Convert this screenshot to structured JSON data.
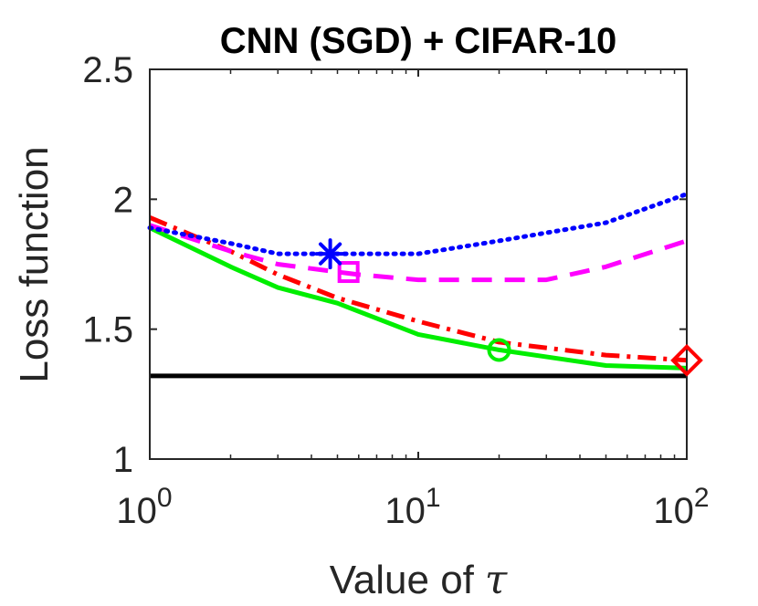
{
  "chart_data": {
    "type": "line",
    "title": "CNN (SGD) + CIFAR-10",
    "xlabel": "Value of",
    "xlabel_symbol": "τ",
    "ylabel": "Loss function",
    "xscale": "log",
    "xlim": [
      1,
      100
    ],
    "ylim": [
      1,
      2.5
    ],
    "xticks": [
      {
        "value": 1,
        "base": "10",
        "exp": "0"
      },
      {
        "value": 10,
        "base": "10",
        "exp": "1"
      },
      {
        "value": 100,
        "base": "10",
        "exp": "2"
      }
    ],
    "yticks": [
      {
        "value": 1,
        "label": "1"
      },
      {
        "value": 1.5,
        "label": "1.5"
      },
      {
        "value": 2,
        "label": "2"
      },
      {
        "value": 2.5,
        "label": "2.5"
      }
    ],
    "series": [
      {
        "name": "blue-dotted",
        "color": "#0000ff",
        "dash": "dotted",
        "x": [
          1,
          2,
          3,
          5,
          10,
          20,
          50,
          100
        ],
        "y": [
          1.89,
          1.83,
          1.79,
          1.79,
          1.79,
          1.84,
          1.91,
          2.02
        ],
        "marker": {
          "shape": "asterisk",
          "x": 4.7,
          "y": 1.79
        }
      },
      {
        "name": "magenta-dashed",
        "color": "#ff00ff",
        "dash": "dashed",
        "x": [
          1,
          2,
          3,
          5,
          6,
          10,
          20,
          30,
          50,
          100
        ],
        "y": [
          1.9,
          1.8,
          1.75,
          1.72,
          1.71,
          1.69,
          1.69,
          1.69,
          1.74,
          1.84
        ],
        "marker": {
          "shape": "square",
          "x": 5.5,
          "y": 1.72
        }
      },
      {
        "name": "red-dashdot",
        "color": "#ff0000",
        "dash": "dashdot",
        "x": [
          1,
          2,
          3,
          5,
          10,
          20,
          50,
          100
        ],
        "y": [
          1.93,
          1.8,
          1.71,
          1.62,
          1.53,
          1.45,
          1.4,
          1.38
        ],
        "marker": {
          "shape": "diamond",
          "x": 100,
          "y": 1.38
        }
      },
      {
        "name": "green-solid",
        "color": "#00ee00",
        "dash": "solid",
        "x": [
          1,
          2,
          3,
          5,
          10,
          20,
          50,
          100
        ],
        "y": [
          1.89,
          1.74,
          1.66,
          1.6,
          1.48,
          1.42,
          1.36,
          1.35
        ],
        "marker": {
          "shape": "circle",
          "x": 20,
          "y": 1.42
        }
      },
      {
        "name": "black-baseline",
        "color": "#000000",
        "dash": "solid",
        "x": [
          1,
          100
        ],
        "y": [
          1.32,
          1.32
        ],
        "marker": null
      }
    ]
  }
}
